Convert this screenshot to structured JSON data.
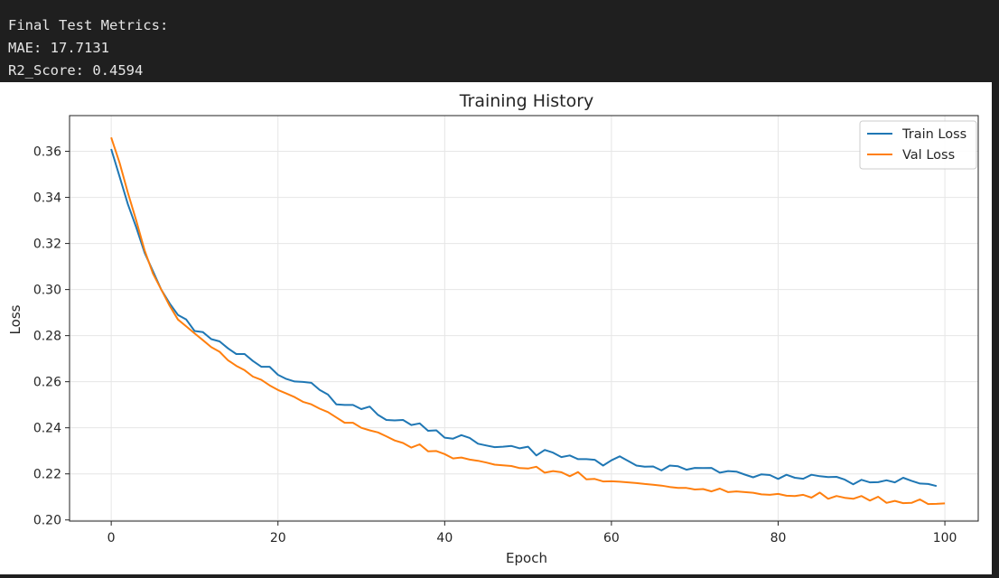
{
  "console": {
    "lines": [
      "Final Test Metrics:",
      "MAE: 17.7131",
      "R2_Score: 0.4594"
    ]
  },
  "chart_data": {
    "type": "line",
    "title": "Training History",
    "xlabel": "Epoch",
    "ylabel": "Loss",
    "xlim": [
      -5,
      104
    ],
    "ylim": [
      0.1995,
      0.3755
    ],
    "xticks": [
      0,
      20,
      40,
      60,
      80,
      100
    ],
    "yticks": [
      0.2,
      0.22,
      0.24,
      0.26,
      0.28,
      0.3,
      0.32,
      0.34,
      0.36
    ],
    "ytick_labels": [
      "0.20",
      "0.22",
      "0.24",
      "0.26",
      "0.28",
      "0.30",
      "0.32",
      "0.34",
      "0.36"
    ],
    "grid": true,
    "legend_position": "top-right",
    "series": [
      {
        "name": "Train Loss",
        "color": "#1f77b4",
        "values": [
          0.361,
          0.349,
          0.337,
          0.327,
          0.316,
          0.308,
          0.3,
          0.294,
          0.289,
          0.287,
          0.282,
          0.2815,
          0.2785,
          0.2775,
          0.2745,
          0.272,
          0.272,
          0.269,
          0.2665,
          0.2665,
          0.263,
          0.2612,
          0.2601,
          0.2599,
          0.2595,
          0.2564,
          0.2544,
          0.2502,
          0.2499,
          0.2499,
          0.2481,
          0.2492,
          0.2456,
          0.2434,
          0.2432,
          0.2434,
          0.2412,
          0.2419,
          0.2387,
          0.2389,
          0.2357,
          0.2353,
          0.2368,
          0.2356,
          0.2331,
          0.2323,
          0.2316,
          0.2318,
          0.2321,
          0.2311,
          0.2318,
          0.228,
          0.2304,
          0.2292,
          0.2273,
          0.228,
          0.2264,
          0.2264,
          0.2261,
          0.2236,
          0.2259,
          0.2276,
          0.2256,
          0.2236,
          0.2231,
          0.2232,
          0.2215,
          0.2236,
          0.2233,
          0.2218,
          0.2226,
          0.2225,
          0.2226,
          0.2205,
          0.2212,
          0.221,
          0.2197,
          0.2185,
          0.2198,
          0.2195,
          0.2178,
          0.2196,
          0.2183,
          0.2179,
          0.2196,
          0.219,
          0.2186,
          0.2187,
          0.2175,
          0.2155,
          0.2174,
          0.2163,
          0.2164,
          0.2172,
          0.2163,
          0.2183,
          0.217,
          0.2158,
          0.2156,
          0.2147
        ]
      },
      {
        "name": "Val Loss",
        "color": "#ff7f0e",
        "values": [
          0.366,
          0.355,
          0.342,
          0.33,
          0.317,
          0.307,
          0.3,
          0.293,
          0.287,
          0.284,
          0.281,
          0.278,
          0.275,
          0.273,
          0.2693,
          0.2669,
          0.265,
          0.2622,
          0.2608,
          0.2584,
          0.2564,
          0.2549,
          0.2533,
          0.2513,
          0.2502,
          0.2483,
          0.2468,
          0.2445,
          0.2422,
          0.2422,
          0.24,
          0.2389,
          0.238,
          0.2363,
          0.2345,
          0.2334,
          0.2314,
          0.2328,
          0.2298,
          0.2299,
          0.2286,
          0.2267,
          0.2271,
          0.2262,
          0.2257,
          0.2249,
          0.224,
          0.2237,
          0.2234,
          0.2225,
          0.2223,
          0.2231,
          0.2205,
          0.2212,
          0.2207,
          0.219,
          0.2208,
          0.2176,
          0.2178,
          0.2167,
          0.2168,
          0.2166,
          0.2163,
          0.216,
          0.2156,
          0.2153,
          0.2149,
          0.2143,
          0.2139,
          0.2139,
          0.2132,
          0.2134,
          0.2124,
          0.2136,
          0.2121,
          0.2124,
          0.2121,
          0.2118,
          0.2111,
          0.2109,
          0.2113,
          0.2105,
          0.2104,
          0.2109,
          0.2097,
          0.2119,
          0.2092,
          0.2104,
          0.2096,
          0.2092,
          0.2104,
          0.2084,
          0.2101,
          0.2074,
          0.2083,
          0.2073,
          0.2074,
          0.2089,
          0.2069,
          0.207,
          0.2072
        ]
      }
    ]
  }
}
